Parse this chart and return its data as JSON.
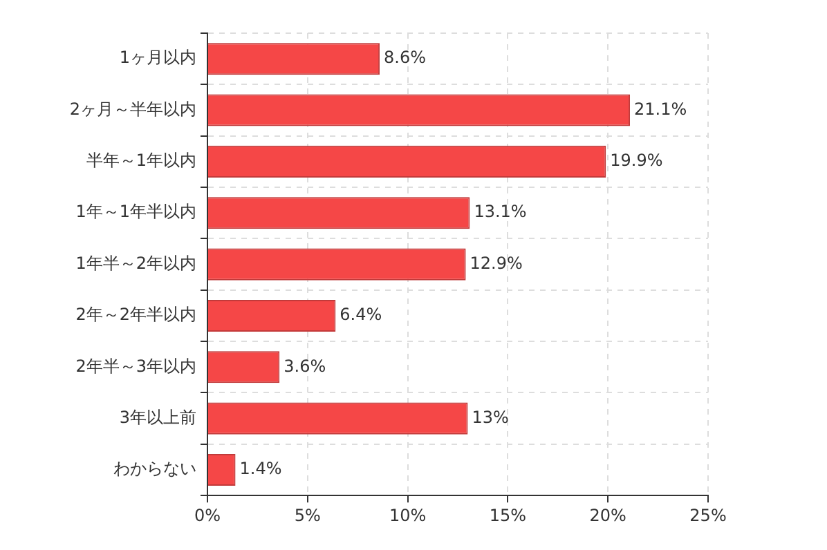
{
  "chart_data": {
    "type": "bar",
    "orientation": "horizontal",
    "categories": [
      "1ヶ月以内",
      "2ヶ月～半年以内",
      "半年～1年以内",
      "1年～1年半以内",
      "1年半～2年以内",
      "2年～2年半以内",
      "2年半～3年以内",
      "3年以上前",
      "わからない"
    ],
    "values": [
      8.6,
      21.1,
      19.9,
      13.1,
      12.9,
      6.4,
      3.6,
      13,
      1.4
    ],
    "value_labels": [
      "8.6%",
      "21.1%",
      "19.9%",
      "13.1%",
      "12.9%",
      "6.4%",
      "3.6%",
      "13%",
      "1.4%"
    ],
    "color": "#f54747",
    "xlim": [
      0,
      25
    ],
    "xticks": [
      {
        "value": 0,
        "label": "0%"
      },
      {
        "value": 5,
        "label": "5%"
      },
      {
        "value": 10,
        "label": "10%"
      },
      {
        "value": 15,
        "label": "15%"
      },
      {
        "value": 20,
        "label": "20%"
      },
      {
        "value": 25,
        "label": "25%"
      }
    ],
    "grid": true,
    "legend": false
  }
}
